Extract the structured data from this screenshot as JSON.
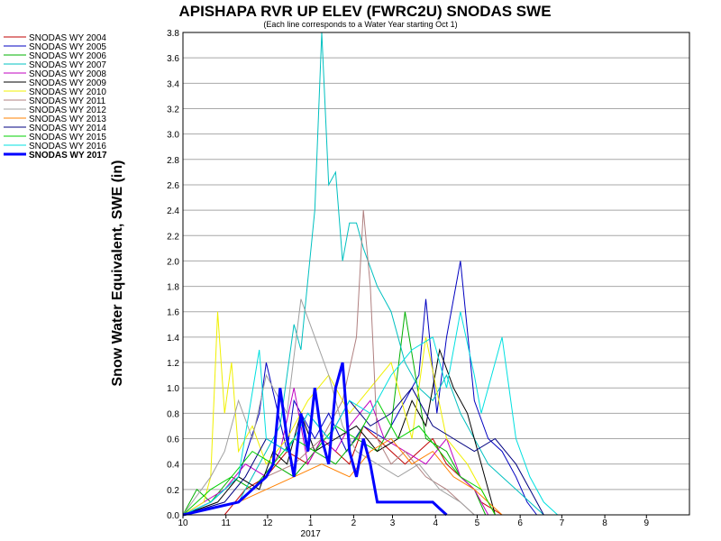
{
  "chart_data": {
    "type": "line",
    "title": "APISHAPA RVR UP ELEV (FWRC2U) SNODAS SWE",
    "subtitle": "(Each line corresponds to a Water Year starting Oct 1)",
    "ylabel": "Snow Water Equivalent, SWE (in)",
    "xlabel": "",
    "ylim": [
      0,
      3.8
    ],
    "yticks": [
      "0.0",
      "0.2",
      "0.4",
      "0.6",
      "0.8",
      "1.0",
      "1.2",
      "1.4",
      "1.6",
      "1.8",
      "2.0",
      "2.2",
      "2.4",
      "2.6",
      "2.8",
      "3.0",
      "3.2",
      "3.4",
      "3.6",
      "3.8"
    ],
    "xticks": [
      "10",
      "11",
      "12",
      "1",
      "2",
      "3",
      "4",
      "5",
      "6",
      "7",
      "8",
      "9"
    ],
    "year_label": "2017",
    "x_unit": "days since Oct 1",
    "xlim": [
      0,
      365
    ],
    "grid": true,
    "legend_position": "left",
    "series": [
      {
        "name": "SNODAS WY 2004",
        "color": "#c00000",
        "width": 1,
        "x": [
          0,
          30,
          45,
          60,
          75,
          90,
          100,
          110,
          120,
          130,
          140,
          150,
          160,
          170,
          180,
          190,
          200,
          210,
          215,
          230
        ],
        "y": [
          0,
          0,
          0.2,
          0.3,
          0.5,
          0.4,
          0.6,
          0.5,
          0.4,
          0.7,
          0.6,
          0.5,
          0.4,
          0.5,
          0.6,
          0.4,
          0.3,
          0.2,
          0.1,
          0
        ]
      },
      {
        "name": "SNODAS WY 2005",
        "color": "#0000c0",
        "width": 1,
        "x": [
          0,
          20,
          40,
          55,
          60,
          75,
          80,
          95,
          105,
          118,
          130,
          145,
          160,
          170,
          175,
          183,
          190,
          200,
          210,
          220,
          230,
          240,
          248,
          255
        ],
        "y": [
          0,
          0.1,
          0.3,
          0.8,
          1.2,
          0.5,
          0.9,
          0.6,
          0.8,
          0.5,
          0.7,
          0.6,
          0.9,
          1.1,
          1.7,
          0.8,
          1.4,
          2.0,
          0.9,
          0.6,
          0.5,
          0.3,
          0.1,
          0
        ]
      },
      {
        "name": "SNODAS WY 2006",
        "color": "#00b000",
        "width": 1,
        "x": [
          0,
          10,
          20,
          35,
          50,
          65,
          80,
          95,
          110,
          125,
          140,
          150,
          160,
          175,
          190,
          200,
          210,
          218
        ],
        "y": [
          0,
          0.2,
          0.1,
          0.3,
          0.2,
          0.4,
          0.3,
          0.5,
          0.4,
          0.6,
          0.5,
          0.7,
          1.6,
          0.6,
          0.5,
          0.3,
          0.2,
          0
        ]
      },
      {
        "name": "SNODAS WY 2007",
        "color": "#00c0c0",
        "width": 1,
        "x": [
          0,
          40,
          50,
          60,
          70,
          80,
          85,
          95,
          100,
          105,
          110,
          115,
          120,
          125,
          130,
          140,
          150,
          160,
          170,
          180,
          190,
          200,
          210,
          220,
          230,
          240,
          250,
          260
        ],
        "y": [
          0,
          0.1,
          0.3,
          0.5,
          0.7,
          1.5,
          1.3,
          2.4,
          3.8,
          2.6,
          2.7,
          2.0,
          2.3,
          2.3,
          2.1,
          1.8,
          1.6,
          1.2,
          1.0,
          0.9,
          1.1,
          0.8,
          0.6,
          0.4,
          0.3,
          0.2,
          0.1,
          0
        ]
      },
      {
        "name": "SNODAS WY 2008",
        "color": "#c000c0",
        "width": 1,
        "x": [
          0,
          30,
          45,
          60,
          70,
          80,
          90,
          100,
          110,
          120,
          135,
          145,
          160,
          175,
          190,
          200,
          210,
          220
        ],
        "y": [
          0,
          0.2,
          0.4,
          0.3,
          0.5,
          1.0,
          0.4,
          0.6,
          0.5,
          0.7,
          0.9,
          0.6,
          0.5,
          0.4,
          0.6,
          0.3,
          0.2,
          0
        ]
      },
      {
        "name": "SNODAS WY 2009",
        "color": "#000000",
        "width": 1,
        "x": [
          0,
          25,
          40,
          55,
          65,
          75,
          85,
          95,
          110,
          125,
          140,
          155,
          165,
          175,
          185,
          195,
          205,
          215,
          225
        ],
        "y": [
          0,
          0.1,
          0.3,
          0.2,
          0.5,
          0.4,
          0.8,
          0.5,
          0.6,
          0.7,
          0.5,
          0.6,
          0.9,
          0.7,
          1.3,
          1.0,
          0.8,
          0.4,
          0
        ]
      },
      {
        "name": "SNODAS WY 2010",
        "color": "#f0f000",
        "width": 1,
        "x": [
          0,
          15,
          20,
          25,
          30,
          35,
          40,
          50,
          60,
          75,
          90,
          105,
          120,
          135,
          150,
          165,
          175,
          190,
          205,
          215,
          225
        ],
        "y": [
          0,
          0.1,
          0.3,
          1.6,
          0.8,
          1.2,
          0.5,
          0.7,
          0.4,
          0.6,
          0.9,
          1.1,
          0.8,
          1.0,
          1.2,
          0.6,
          1.4,
          0.6,
          0.4,
          0.2,
          0
        ]
      },
      {
        "name": "SNODAS WY 2011",
        "color": "#b08080",
        "width": 1,
        "x": [
          0,
          40,
          60,
          80,
          100,
          115,
          125,
          130,
          135,
          140,
          150,
          160,
          175,
          190,
          200,
          210
        ],
        "y": [
          0,
          0.1,
          0.3,
          0.4,
          0.6,
          0.9,
          1.4,
          2.4,
          1.8,
          0.6,
          0.4,
          0.5,
          0.3,
          0.2,
          0.1,
          0
        ]
      },
      {
        "name": "SNODAS WY 2012",
        "color": "#a0a0a0",
        "width": 1,
        "x": [
          0,
          20,
          30,
          40,
          50,
          60,
          75,
          85,
          95,
          105,
          115,
          125,
          140,
          155,
          170,
          185,
          200,
          210
        ],
        "y": [
          0,
          0.3,
          0.5,
          0.9,
          0.6,
          1.1,
          0.8,
          1.7,
          1.4,
          1.1,
          0.7,
          0.5,
          0.4,
          0.3,
          0.4,
          0.2,
          0.1,
          0
        ]
      },
      {
        "name": "SNODAS WY 2013",
        "color": "#ff8000",
        "width": 1,
        "x": [
          0,
          40,
          60,
          80,
          100,
          120,
          135,
          150,
          165,
          180,
          195,
          210,
          220,
          230
        ],
        "y": [
          0,
          0.1,
          0.2,
          0.3,
          0.4,
          0.3,
          0.5,
          0.6,
          0.4,
          0.5,
          0.3,
          0.2,
          0.1,
          0
        ]
      },
      {
        "name": "SNODAS WY 2014",
        "color": "#000080",
        "width": 1,
        "x": [
          0,
          30,
          45,
          60,
          75,
          90,
          105,
          120,
          135,
          150,
          165,
          180,
          195,
          210,
          225,
          240,
          250,
          260
        ],
        "y": [
          0,
          0.1,
          0.3,
          0.6,
          0.5,
          0.8,
          0.6,
          0.9,
          0.7,
          0.8,
          1.0,
          0.7,
          0.6,
          0.5,
          0.6,
          0.4,
          0.2,
          0
        ]
      },
      {
        "name": "SNODAS WY 2015",
        "color": "#00d000",
        "width": 1,
        "x": [
          0,
          20,
          35,
          50,
          65,
          80,
          95,
          110,
          125,
          140,
          155,
          170,
          185,
          200,
          215,
          225
        ],
        "y": [
          0,
          0.2,
          0.3,
          0.5,
          0.4,
          0.6,
          0.5,
          0.7,
          0.6,
          0.9,
          0.6,
          0.7,
          0.5,
          0.3,
          0.2,
          0
        ]
      },
      {
        "name": "SNODAS WY 2016",
        "color": "#00e0e0",
        "width": 1,
        "x": [
          0,
          20,
          40,
          55,
          60,
          75,
          90,
          105,
          120,
          135,
          150,
          165,
          180,
          190,
          200,
          210,
          215,
          220,
          230,
          240,
          250,
          260,
          270
        ],
        "y": [
          0,
          0.1,
          0.3,
          1.3,
          0.6,
          0.5,
          0.8,
          0.6,
          0.9,
          0.8,
          1.1,
          1.3,
          1.4,
          1.0,
          1.6,
          1.1,
          0.8,
          1.0,
          1.4,
          0.6,
          0.3,
          0.1,
          0
        ]
      },
      {
        "name": "SNODAS WY 2017",
        "color": "#0000ff",
        "width": 3,
        "x": [
          0,
          40,
          50,
          60,
          65,
          70,
          75,
          80,
          85,
          90,
          95,
          100,
          105,
          110,
          115,
          120,
          125,
          130,
          135,
          140,
          145,
          150,
          155,
          160,
          165,
          170,
          175,
          180,
          185,
          190
        ],
        "y": [
          0,
          0.1,
          0.2,
          0.3,
          0.4,
          1.0,
          0.6,
          0.3,
          0.8,
          0.5,
          1.0,
          0.6,
          0.4,
          1.0,
          1.2,
          0.5,
          0.3,
          0.6,
          0.4,
          0.1,
          0.1,
          0.1,
          0.1,
          0.1,
          0.1,
          0.1,
          0.1,
          0.1,
          0.05,
          0
        ]
      }
    ]
  }
}
